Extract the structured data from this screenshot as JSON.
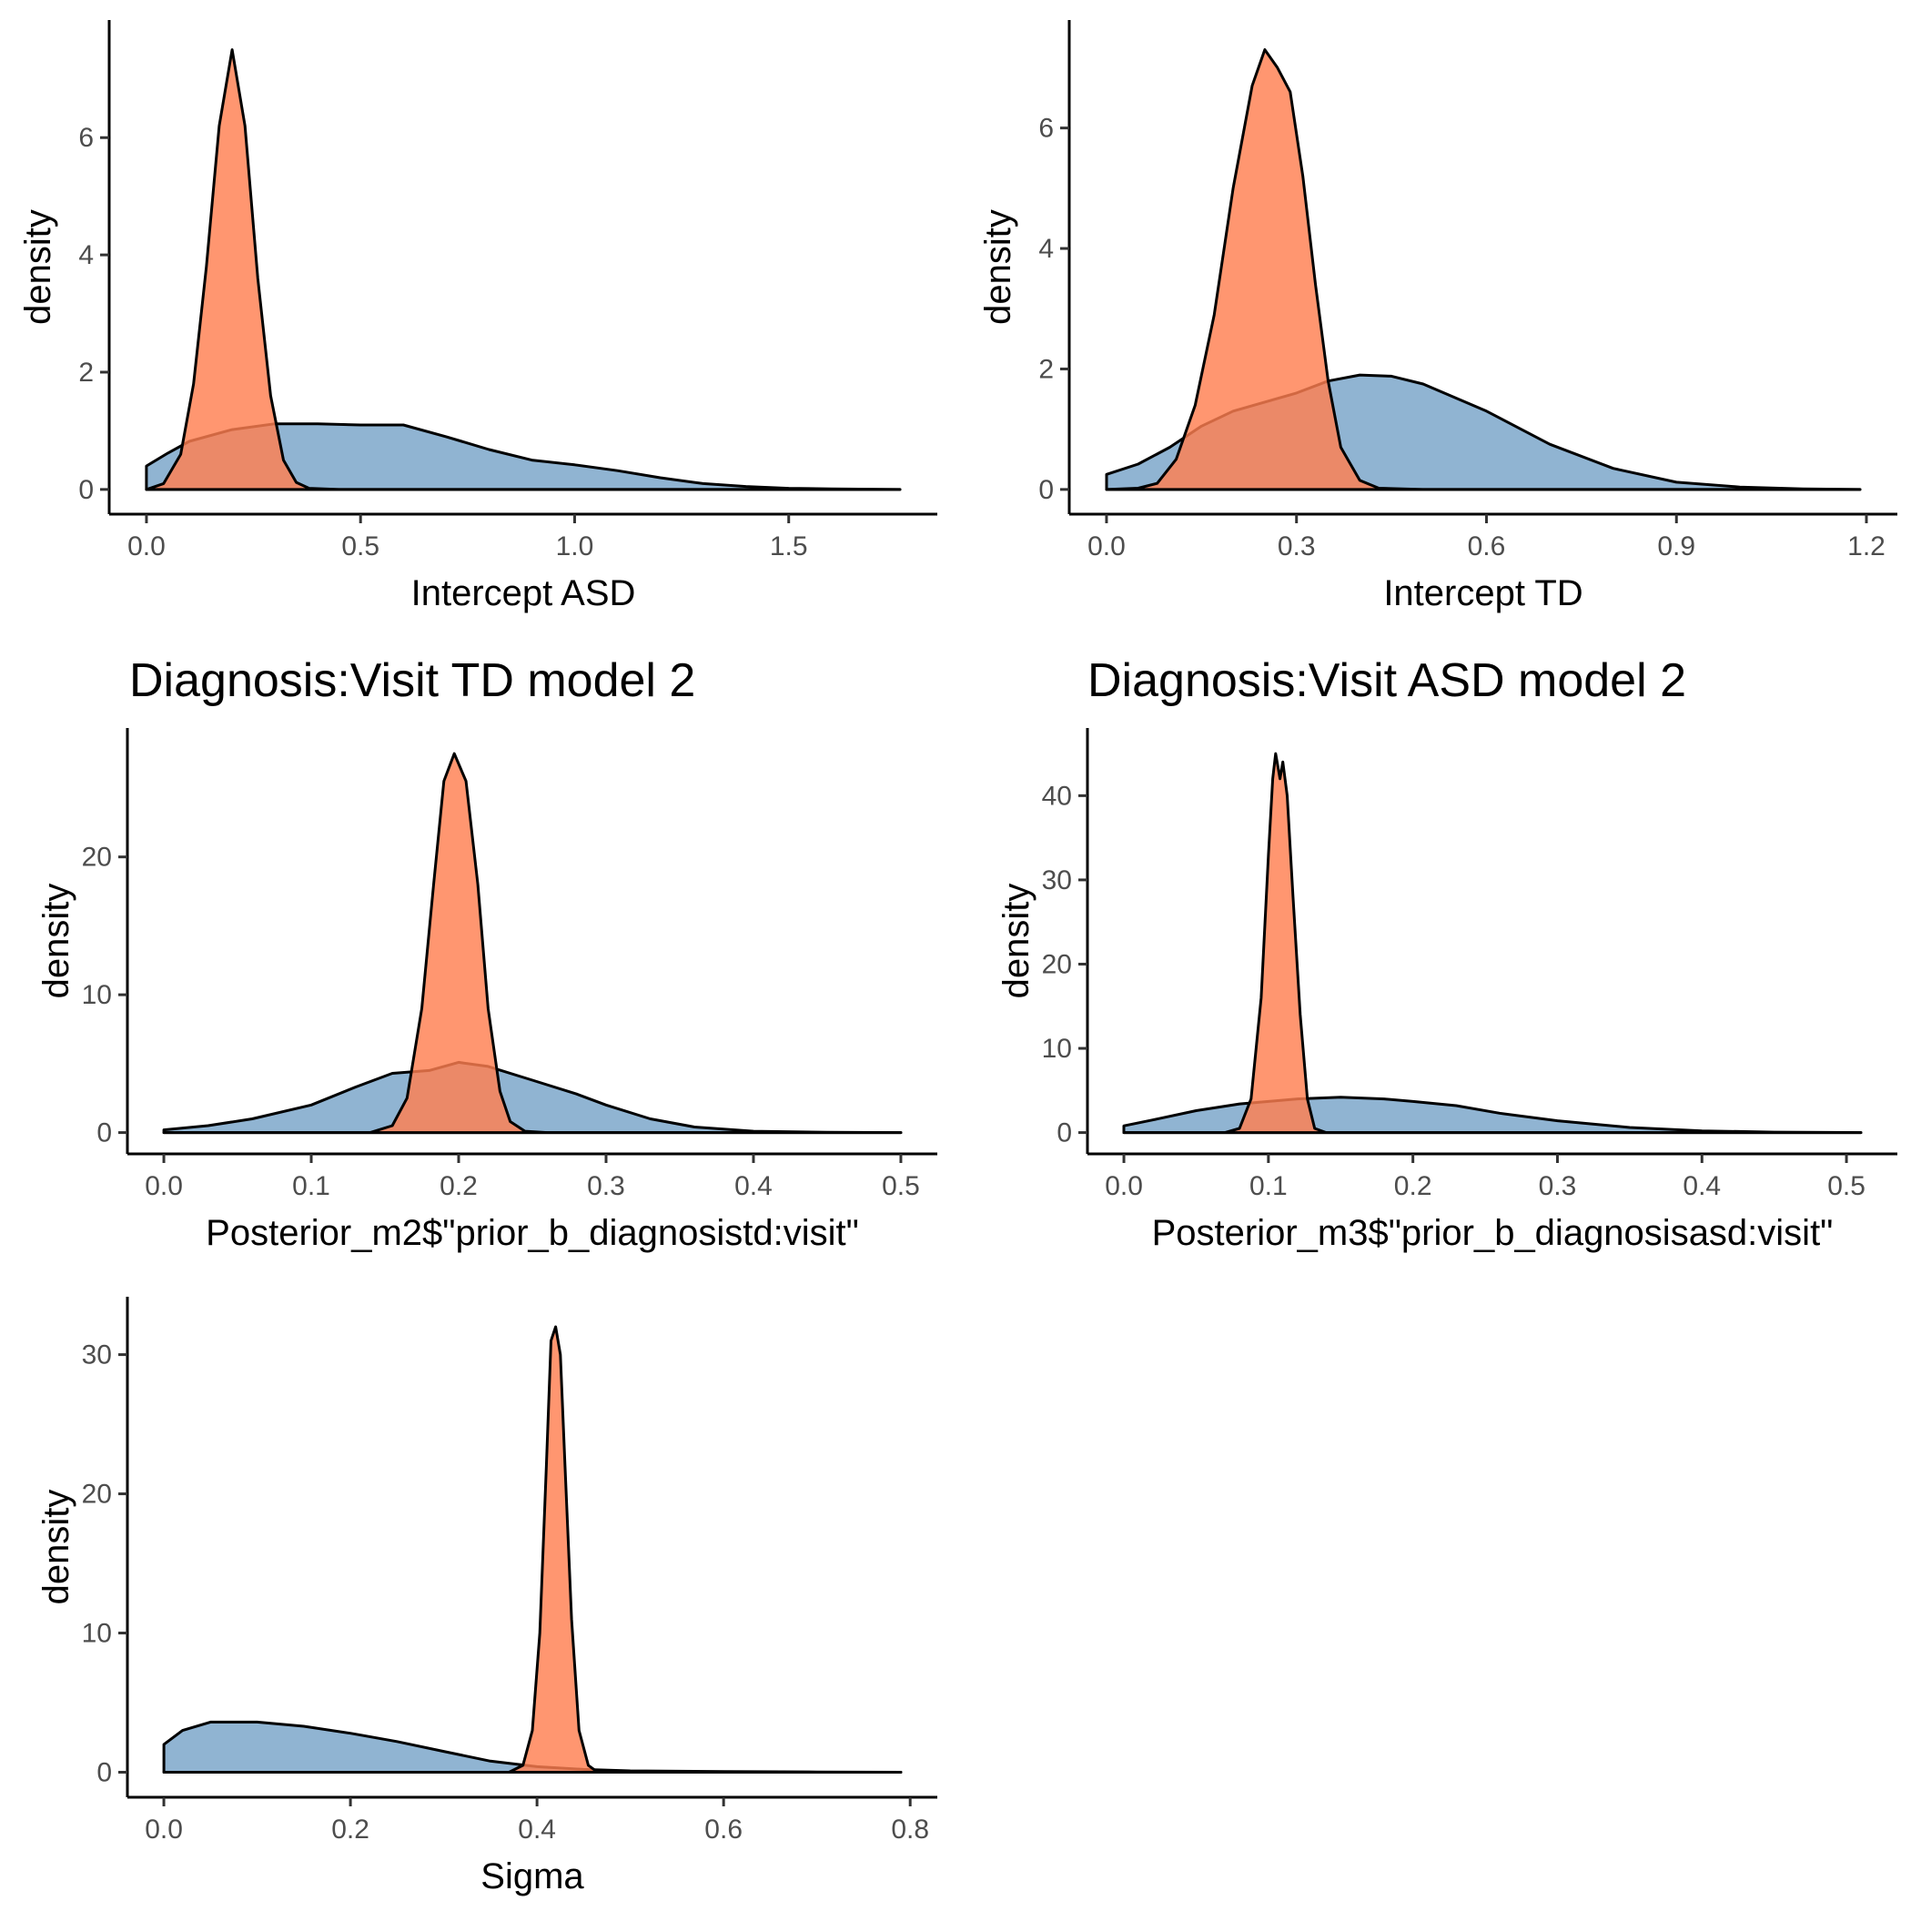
{
  "figure": {
    "colors": {
      "prior": "#4682B4",
      "posterior": "#FF7F50"
    }
  },
  "chart_data": [
    {
      "type": "area",
      "title": "",
      "xlabel": "Intercept ASD",
      "ylabel": "density",
      "xlim": [
        0,
        1.76
      ],
      "ylim": [
        0,
        7.5
      ],
      "xticks": [
        0,
        0.5,
        1,
        1.5
      ],
      "xtick_labels": [
        "0.0",
        "0.5",
        "1.0",
        "1.5"
      ],
      "yticks": [
        0,
        2,
        4,
        6
      ],
      "ytick_labels": [
        "0",
        "2",
        "4",
        "6"
      ],
      "grid": false,
      "legend": "none",
      "series": [
        {
          "role": "prior",
          "color": "#4682B4",
          "points": [
            [
              0,
              0.4
            ],
            [
              0.05,
              0.62
            ],
            [
              0.1,
              0.82
            ],
            [
              0.2,
              1.02
            ],
            [
              0.3,
              1.12
            ],
            [
              0.4,
              1.12
            ],
            [
              0.5,
              1.1
            ],
            [
              0.6,
              1.1
            ],
            [
              0.7,
              0.9
            ],
            [
              0.8,
              0.68
            ],
            [
              0.9,
              0.5
            ],
            [
              1.0,
              0.42
            ],
            [
              1.1,
              0.32
            ],
            [
              1.2,
              0.2
            ],
            [
              1.3,
              0.1
            ],
            [
              1.4,
              0.05
            ],
            [
              1.5,
              0.02
            ],
            [
              1.6,
              0.01
            ],
            [
              1.76,
              0
            ]
          ]
        },
        {
          "role": "posterior",
          "color": "#FF7F50",
          "points": [
            [
              0,
              0
            ],
            [
              0.04,
              0.1
            ],
            [
              0.08,
              0.6
            ],
            [
              0.11,
              1.8
            ],
            [
              0.14,
              3.8
            ],
            [
              0.17,
              6.2
            ],
            [
              0.2,
              7.5
            ],
            [
              0.23,
              6.2
            ],
            [
              0.26,
              3.6
            ],
            [
              0.29,
              1.6
            ],
            [
              0.32,
              0.5
            ],
            [
              0.35,
              0.12
            ],
            [
              0.38,
              0.02
            ],
            [
              0.45,
              0
            ],
            [
              1.76,
              0
            ]
          ]
        }
      ]
    },
    {
      "type": "area",
      "title": "",
      "xlabel": "Intercept TD",
      "ylabel": "density",
      "xlim": [
        0,
        1.19
      ],
      "ylim": [
        0,
        7.3
      ],
      "xticks": [
        0,
        0.3,
        0.6,
        0.9,
        1.2
      ],
      "xtick_labels": [
        "0.0",
        "0.3",
        "0.6",
        "0.9",
        "1.2"
      ],
      "yticks": [
        0,
        2,
        4,
        6
      ],
      "ytick_labels": [
        "0",
        "2",
        "4",
        "6"
      ],
      "grid": false,
      "legend": "none",
      "series": [
        {
          "role": "prior",
          "color": "#4682B4",
          "points": [
            [
              0,
              0.25
            ],
            [
              0.05,
              0.42
            ],
            [
              0.1,
              0.7
            ],
            [
              0.15,
              1.05
            ],
            [
              0.2,
              1.3
            ],
            [
              0.3,
              1.6
            ],
            [
              0.35,
              1.8
            ],
            [
              0.4,
              1.9
            ],
            [
              0.45,
              1.88
            ],
            [
              0.5,
              1.75
            ],
            [
              0.6,
              1.3
            ],
            [
              0.7,
              0.75
            ],
            [
              0.8,
              0.35
            ],
            [
              0.9,
              0.12
            ],
            [
              1.0,
              0.04
            ],
            [
              1.1,
              0.01
            ],
            [
              1.19,
              0
            ]
          ]
        },
        {
          "role": "posterior",
          "color": "#FF7F50",
          "points": [
            [
              0,
              0
            ],
            [
              0.05,
              0.02
            ],
            [
              0.08,
              0.1
            ],
            [
              0.11,
              0.5
            ],
            [
              0.14,
              1.4
            ],
            [
              0.17,
              2.9
            ],
            [
              0.2,
              5.0
            ],
            [
              0.23,
              6.7
            ],
            [
              0.25,
              7.3
            ],
            [
              0.27,
              7.0
            ],
            [
              0.29,
              6.6
            ],
            [
              0.31,
              5.2
            ],
            [
              0.33,
              3.4
            ],
            [
              0.35,
              1.8
            ],
            [
              0.37,
              0.7
            ],
            [
              0.4,
              0.15
            ],
            [
              0.43,
              0.02
            ],
            [
              0.5,
              0
            ],
            [
              1.19,
              0
            ]
          ]
        }
      ]
    },
    {
      "type": "area",
      "title": "Diagnosis:Visit TD model 2",
      "xlabel": "Posterior_m2$\"prior_b_diagnosistd:visit\"",
      "ylabel": "density",
      "xlim": [
        0,
        0.5
      ],
      "ylim": [
        0,
        27.5
      ],
      "xticks": [
        0,
        0.1,
        0.2,
        0.3,
        0.4,
        0.5
      ],
      "xtick_labels": [
        "0.0",
        "0.1",
        "0.2",
        "0.3",
        "0.4",
        "0.5"
      ],
      "yticks": [
        0,
        10,
        20
      ],
      "ytick_labels": [
        "0",
        "10",
        "20"
      ],
      "grid": false,
      "legend": "none",
      "series": [
        {
          "role": "prior",
          "color": "#4682B4",
          "points": [
            [
              0,
              0.2
            ],
            [
              0.03,
              0.5
            ],
            [
              0.06,
              1.0
            ],
            [
              0.1,
              2.0
            ],
            [
              0.13,
              3.3
            ],
            [
              0.155,
              4.3
            ],
            [
              0.18,
              4.5
            ],
            [
              0.2,
              5.1
            ],
            [
              0.22,
              4.8
            ],
            [
              0.25,
              3.8
            ],
            [
              0.28,
              2.8
            ],
            [
              0.3,
              2.0
            ],
            [
              0.33,
              1.0
            ],
            [
              0.36,
              0.4
            ],
            [
              0.4,
              0.1
            ],
            [
              0.45,
              0.02
            ],
            [
              0.5,
              0
            ]
          ]
        },
        {
          "role": "posterior",
          "color": "#FF7F50",
          "points": [
            [
              0,
              0
            ],
            [
              0.14,
              0
            ],
            [
              0.155,
              0.5
            ],
            [
              0.165,
              2.5
            ],
            [
              0.175,
              9
            ],
            [
              0.183,
              18
            ],
            [
              0.19,
              25.5
            ],
            [
              0.197,
              27.5
            ],
            [
              0.205,
              25.5
            ],
            [
              0.213,
              18
            ],
            [
              0.22,
              9
            ],
            [
              0.228,
              3
            ],
            [
              0.235,
              0.8
            ],
            [
              0.245,
              0.1
            ],
            [
              0.26,
              0
            ],
            [
              0.5,
              0
            ]
          ]
        }
      ]
    },
    {
      "type": "area",
      "title": "Diagnosis:Visit ASD model 2",
      "xlabel": "Posterior_m3$\"prior_b_diagnosisasd:visit\"",
      "ylabel": "density",
      "xlim": [
        0,
        0.51
      ],
      "ylim": [
        0,
        45
      ],
      "xticks": [
        0,
        0.1,
        0.2,
        0.3,
        0.4,
        0.5
      ],
      "xtick_labels": [
        "0.0",
        "0.1",
        "0.2",
        "0.3",
        "0.4",
        "0.5"
      ],
      "yticks": [
        0,
        10,
        20,
        30,
        40
      ],
      "ytick_labels": [
        "0",
        "10",
        "20",
        "30",
        "40"
      ],
      "grid": false,
      "legend": "none",
      "series": [
        {
          "role": "prior",
          "color": "#4682B4",
          "points": [
            [
              0,
              0.8
            ],
            [
              0.02,
              1.5
            ],
            [
              0.05,
              2.6
            ],
            [
              0.08,
              3.4
            ],
            [
              0.1,
              3.7
            ],
            [
              0.12,
              4.0
            ],
            [
              0.15,
              4.2
            ],
            [
              0.18,
              4.0
            ],
            [
              0.2,
              3.7
            ],
            [
              0.23,
              3.2
            ],
            [
              0.26,
              2.3
            ],
            [
              0.3,
              1.4
            ],
            [
              0.35,
              0.6
            ],
            [
              0.4,
              0.2
            ],
            [
              0.45,
              0.05
            ],
            [
              0.51,
              0
            ]
          ]
        },
        {
          "role": "posterior",
          "color": "#FF7F50",
          "points": [
            [
              0,
              0
            ],
            [
              0.07,
              0
            ],
            [
              0.08,
              0.5
            ],
            [
              0.088,
              4
            ],
            [
              0.095,
              16
            ],
            [
              0.1,
              33
            ],
            [
              0.103,
              42
            ],
            [
              0.105,
              45
            ],
            [
              0.108,
              42
            ],
            [
              0.11,
              44
            ],
            [
              0.113,
              40
            ],
            [
              0.117,
              28
            ],
            [
              0.122,
              14
            ],
            [
              0.127,
              4
            ],
            [
              0.132,
              0.5
            ],
            [
              0.14,
              0
            ],
            [
              0.51,
              0
            ]
          ]
        }
      ]
    },
    {
      "type": "area",
      "title": "",
      "xlabel": "Sigma",
      "ylabel": "density",
      "xlim": [
        0,
        0.79
      ],
      "ylim": [
        0,
        32
      ],
      "xticks": [
        0,
        0.2,
        0.4,
        0.6,
        0.8
      ],
      "xtick_labels": [
        "0.0",
        "0.2",
        "0.4",
        "0.6",
        "0.8"
      ],
      "yticks": [
        0,
        10,
        20,
        30
      ],
      "ytick_labels": [
        "0",
        "10",
        "20",
        "30"
      ],
      "grid": false,
      "legend": "none",
      "series": [
        {
          "role": "prior",
          "color": "#4682B4",
          "points": [
            [
              0,
              2.0
            ],
            [
              0.02,
              3.0
            ],
            [
              0.05,
              3.6
            ],
            [
              0.1,
              3.6
            ],
            [
              0.15,
              3.3
            ],
            [
              0.2,
              2.8
            ],
            [
              0.25,
              2.2
            ],
            [
              0.3,
              1.5
            ],
            [
              0.35,
              0.8
            ],
            [
              0.4,
              0.4
            ],
            [
              0.45,
              0.2
            ],
            [
              0.5,
              0.1
            ],
            [
              0.6,
              0.05
            ],
            [
              0.7,
              0.02
            ],
            [
              0.79,
              0
            ]
          ]
        },
        {
          "role": "posterior",
          "color": "#FF7F50",
          "points": [
            [
              0,
              0
            ],
            [
              0.37,
              0
            ],
            [
              0.385,
              0.5
            ],
            [
              0.395,
              3
            ],
            [
              0.403,
              10
            ],
            [
              0.41,
              22
            ],
            [
              0.415,
              31
            ],
            [
              0.42,
              32
            ],
            [
              0.425,
              30
            ],
            [
              0.43,
              22
            ],
            [
              0.437,
              11
            ],
            [
              0.445,
              3
            ],
            [
              0.455,
              0.5
            ],
            [
              0.465,
              0
            ],
            [
              0.79,
              0
            ]
          ]
        }
      ]
    }
  ]
}
